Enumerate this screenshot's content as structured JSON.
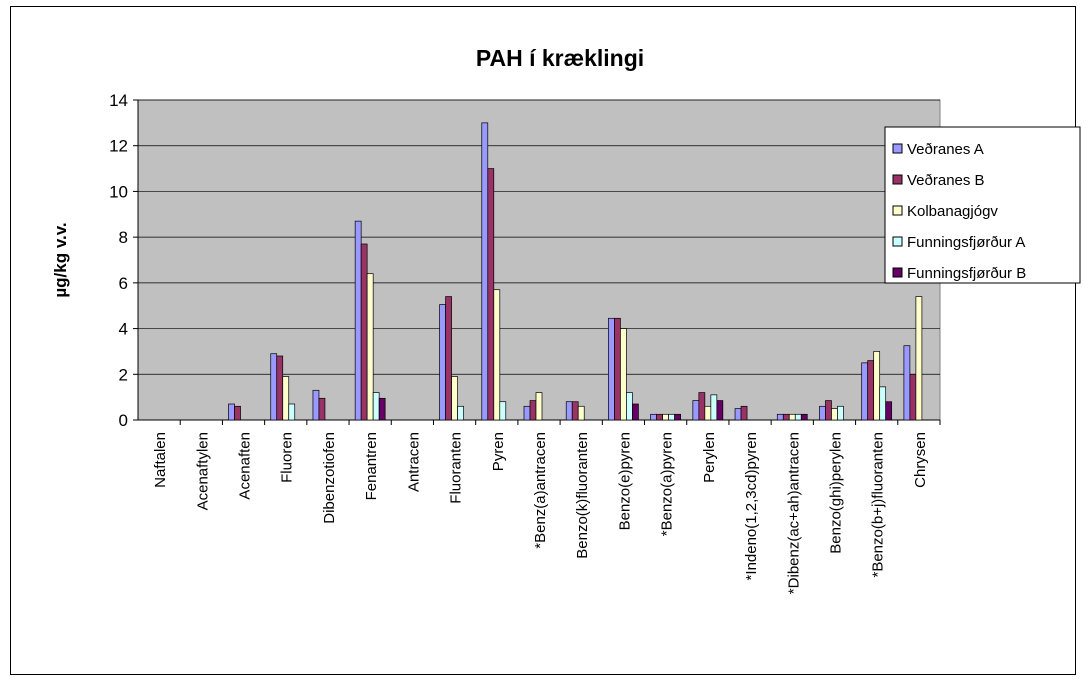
{
  "chart_data": {
    "type": "bar",
    "title": "PAH í kræklingi",
    "y_label": "µg/kg v.v.",
    "categories": [
      "Naftalen",
      "Acenaftylen",
      "Acenaften",
      "Fluoren",
      "Dibenzotiofen",
      "Fenantren",
      "Antracen",
      "Fluoranten",
      "Pyren",
      "*Benz(a)antracen",
      "Benzo(k)fluoranten",
      "Benzo(e)pyren",
      "*Benzo(a)pyren",
      "Perylen",
      "*Indeno(1,2,3cd)pyren",
      "*Dibenz(ac+ah)antracen",
      "Benzo(ghi)perylen",
      "*Benzo(b+j)fluoranten",
      "Chrysen"
    ],
    "series": [
      {
        "name": "Veðranes A",
        "color": "#9999ff",
        "values": [
          0,
          0,
          0.7,
          2.9,
          1.3,
          8.7,
          0,
          5.05,
          13,
          0.6,
          0.8,
          4.45,
          0.25,
          0.85,
          0.5,
          0.25,
          0.6,
          2.5,
          3.25
        ]
      },
      {
        "name": "Veðranes B",
        "color": "#993366",
        "values": [
          0,
          0,
          0.6,
          2.8,
          0.95,
          7.7,
          0,
          5.4,
          11,
          0.85,
          0.8,
          4.45,
          0.25,
          1.2,
          0.6,
          0.25,
          0.85,
          2.6,
          2.0
        ]
      },
      {
        "name": "Kolbanagjógv",
        "color": "#ffffcc",
        "values": [
          0,
          0,
          0,
          1.9,
          0,
          6.4,
          0,
          1.9,
          5.7,
          1.2,
          0.6,
          4.0,
          0.25,
          0.6,
          0,
          0.25,
          0.5,
          3.0,
          5.4
        ]
      },
      {
        "name": "Funningsfjørður A",
        "color": "#ccffff",
        "values": [
          0,
          0,
          0,
          0.7,
          0,
          1.2,
          0,
          0.6,
          0.8,
          0,
          0,
          1.2,
          0.25,
          1.1,
          0,
          0.25,
          0.6,
          1.45,
          0
        ]
      },
      {
        "name": "Funningsfjørður B",
        "color": "#660066",
        "values": [
          0,
          0,
          0,
          0,
          0,
          0.95,
          0,
          0,
          0,
          0,
          0,
          0.7,
          0.25,
          0.85,
          0,
          0.25,
          0,
          0.8,
          0
        ]
      }
    ],
    "ylim": [
      0,
      14
    ],
    "yticks": [
      0,
      2,
      4,
      6,
      8,
      10,
      12,
      14
    ],
    "grid": true,
    "legend": "right"
  }
}
